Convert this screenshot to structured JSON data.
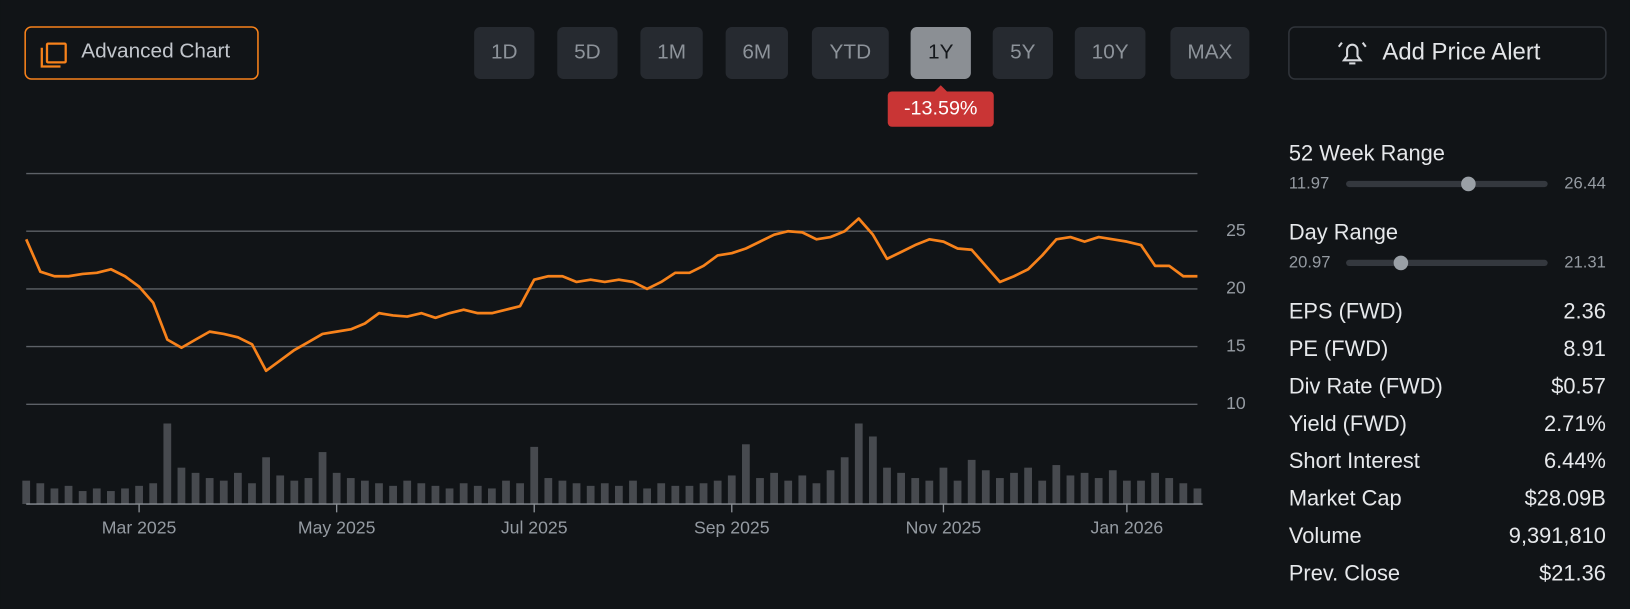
{
  "toolbar": {
    "advanced_chart": "Advanced Chart",
    "ranges": [
      "1D",
      "5D",
      "1M",
      "6M",
      "YTD",
      "1Y",
      "5Y",
      "10Y",
      "MAX"
    ],
    "selected_index": 5,
    "change": "-13.59%",
    "add_alert": "Add Price Alert"
  },
  "chart_data": {
    "type": "line",
    "categories": [
      null,
      null,
      null,
      null,
      null,
      null,
      null,
      null,
      "Mar 2025",
      null,
      null,
      null,
      null,
      null,
      null,
      null,
      null,
      null,
      null,
      null,
      null,
      null,
      "May 2025",
      null,
      null,
      null,
      null,
      null,
      null,
      null,
      null,
      null,
      null,
      null,
      null,
      null,
      "Jul 2025",
      null,
      null,
      null,
      null,
      null,
      null,
      null,
      null,
      null,
      null,
      null,
      null,
      null,
      "Sep 2025",
      null,
      null,
      null,
      null,
      null,
      null,
      null,
      null,
      null,
      null,
      null,
      null,
      null,
      null,
      "Nov 2025",
      null,
      null,
      null,
      null,
      null,
      null,
      null,
      null,
      null,
      null,
      null,
      null,
      "Jan 2026",
      null,
      null,
      null,
      null,
      null
    ],
    "series": [
      {
        "color": "#f7821b",
        "values": [
          24.3,
          21.5,
          21.1,
          21.1,
          21.3,
          21.4,
          21.7,
          21.1,
          20.2,
          18.8,
          15.6,
          14.9,
          15.6,
          16.3,
          16.1,
          15.8,
          15.2,
          12.9,
          13.8,
          14.7,
          15.4,
          16.1,
          16.3,
          16.5,
          17.0,
          17.9,
          17.7,
          17.6,
          17.9,
          17.5,
          17.9,
          18.2,
          17.9,
          17.9,
          18.2,
          18.5,
          20.8,
          21.1,
          21.1,
          20.6,
          20.8,
          20.6,
          20.8,
          20.6,
          20.0,
          20.6,
          21.4,
          21.4,
          22.0,
          22.9,
          23.1,
          23.5,
          24.1,
          24.7,
          25.0,
          24.9,
          24.3,
          24.5,
          25.0,
          26.1,
          24.7,
          22.6,
          23.2,
          23.8,
          24.3,
          24.1,
          23.5,
          23.4,
          22.0,
          20.6,
          21.1,
          21.7,
          22.9,
          24.3,
          24.5,
          24.1,
          24.5,
          24.3,
          24.1,
          23.8,
          22.0,
          22.0,
          21.1,
          21.1
        ]
      },
      {
        "color": "#474a4f",
        "axis": "y2",
        "values": [
          9,
          8,
          6,
          7,
          5,
          6,
          5,
          6,
          7,
          8,
          31,
          14,
          12,
          10,
          9,
          12,
          8,
          18,
          11,
          9,
          10,
          20,
          12,
          10,
          9,
          8,
          7,
          9,
          8,
          7,
          6,
          8,
          7,
          6,
          9,
          8,
          22,
          10,
          9,
          8,
          7,
          8,
          7,
          9,
          6,
          8,
          7,
          7,
          8,
          9,
          11,
          23,
          10,
          12,
          9,
          11,
          8,
          13,
          18,
          31,
          26,
          14,
          12,
          10,
          9,
          14,
          9,
          17,
          13,
          10,
          12,
          14,
          9,
          15,
          11,
          12,
          10,
          13,
          9,
          9,
          12,
          10,
          8,
          6
        ]
      }
    ],
    "ylim": [
      10,
      30
    ],
    "yticks": [
      10,
      15,
      20,
      25
    ],
    "y2lim": [
      0,
      40
    ],
    "grid": true
  },
  "stats": {
    "ranges": [
      {
        "label": "52 Week Range",
        "low": 11.97,
        "high": 26.44,
        "value": 20.8
      },
      {
        "label": "Day Range",
        "low": 20.97,
        "high": 21.31,
        "value": 21.06
      }
    ],
    "rows": [
      {
        "label": "EPS (FWD)",
        "value": "2.36"
      },
      {
        "label": "PE (FWD)",
        "value": "8.91"
      },
      {
        "label": "Div Rate (FWD)",
        "value": "$0.57"
      },
      {
        "label": "Yield (FWD)",
        "value": "2.71%"
      },
      {
        "label": "Short Interest",
        "value": "6.44%"
      },
      {
        "label": "Market Cap",
        "value": "$28.09B"
      },
      {
        "label": "Volume",
        "value": "9,391,810"
      },
      {
        "label": "Prev. Close",
        "value": "$21.36"
      }
    ]
  }
}
